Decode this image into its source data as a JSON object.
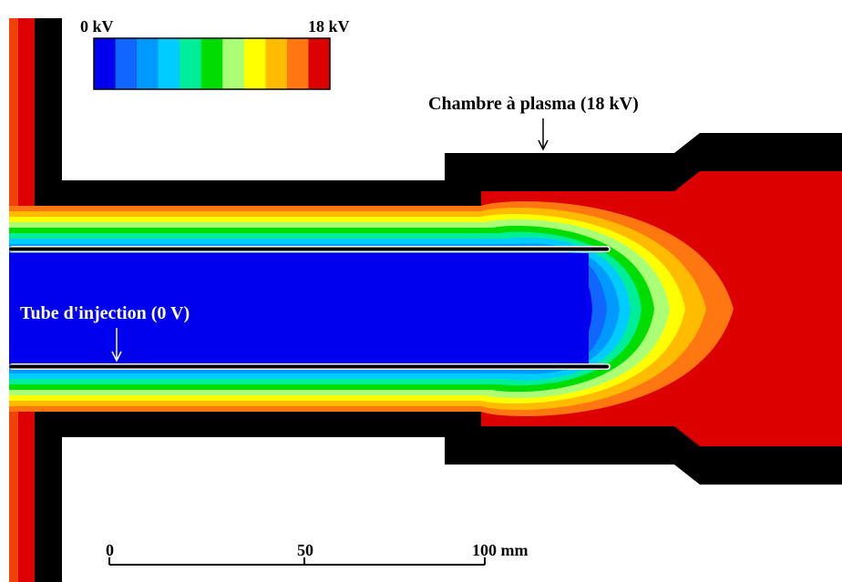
{
  "colorbar": {
    "min_label": "0 kV",
    "max_label": "18 kV",
    "colors": [
      "#0000ee",
      "#1166ff",
      "#0099ff",
      "#00ccff",
      "#00ee99",
      "#00dd00",
      "#aaff77",
      "#ffff00",
      "#ffbb00",
      "#ff7711",
      "#dd0000"
    ]
  },
  "annotations": {
    "chamber_label": "Chambre à plasma (18 kV)",
    "tube_label": "Tube d'injection (0 V)"
  },
  "scale_bar": {
    "ticks": [
      "0",
      "50",
      "100 mm"
    ]
  },
  "palette": {
    "electrode": "#000000",
    "background": "#ffffff",
    "tube_wall": "#ffffff"
  }
}
